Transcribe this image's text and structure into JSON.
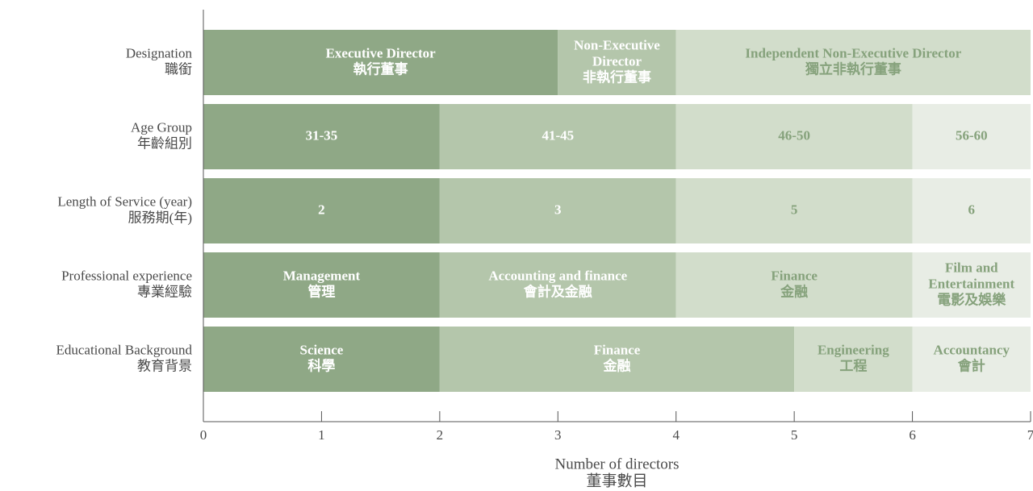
{
  "chart_data": {
    "type": "stacked_barh",
    "categories": [
      [
        "Designation",
        "職銜"
      ],
      [
        "Age Group",
        "年齡組別"
      ],
      [
        "Length of Service (year)",
        "服務期(年)"
      ],
      [
        "Professional experience",
        "專業經驗"
      ],
      [
        "Educational Background",
        "教育背景"
      ]
    ],
    "rows": [
      {
        "segments": [
          {
            "label": [
              "Executive Director",
              "執行董事"
            ],
            "value": 3,
            "color": "#8fa886"
          },
          {
            "label": [
              "Non-Executive",
              "Director",
              "非執行董事"
            ],
            "value": 1,
            "color": "#b4c6ab"
          },
          {
            "label": [
              "Independent Non-Executive Director",
              "獨立非執行董事"
            ],
            "value": 3,
            "color": "#d2ddcb"
          }
        ]
      },
      {
        "segments": [
          {
            "label": [
              "31-35"
            ],
            "value": 2,
            "color": "#8fa886"
          },
          {
            "label": [
              "41-45"
            ],
            "value": 2,
            "color": "#b4c6ab"
          },
          {
            "label": [
              "46-50"
            ],
            "value": 2,
            "color": "#d2ddcb"
          },
          {
            "label": [
              "56-60"
            ],
            "value": 1,
            "color": "#e8ede5"
          }
        ]
      },
      {
        "segments": [
          {
            "label": [
              "2"
            ],
            "value": 2,
            "color": "#8fa886"
          },
          {
            "label": [
              "3"
            ],
            "value": 2,
            "color": "#b4c6ab"
          },
          {
            "label": [
              "5"
            ],
            "value": 2,
            "color": "#d2ddcb"
          },
          {
            "label": [
              "6"
            ],
            "value": 1,
            "color": "#e8ede5"
          }
        ]
      },
      {
        "segments": [
          {
            "label": [
              "Management",
              "管理"
            ],
            "value": 2,
            "color": "#8fa886"
          },
          {
            "label": [
              "Accounting and finance",
              "會計及金融"
            ],
            "value": 2,
            "color": "#b4c6ab"
          },
          {
            "label": [
              "Finance",
              "金融"
            ],
            "value": 2,
            "color": "#d2ddcb"
          },
          {
            "label": [
              "Film and",
              "Entertainment",
              "電影及娛樂"
            ],
            "value": 1,
            "color": "#e8ede5"
          }
        ]
      },
      {
        "segments": [
          {
            "label": [
              "Science",
              "科學"
            ],
            "value": 2,
            "color": "#8fa886"
          },
          {
            "label": [
              "Finance",
              "金融"
            ],
            "value": 3,
            "color": "#b4c6ab"
          },
          {
            "label": [
              "Engineering",
              "工程"
            ],
            "value": 1,
            "color": "#d2ddcb"
          },
          {
            "label": [
              "Accountancy",
              "會計"
            ],
            "value": 1,
            "color": "#e8ede5"
          }
        ]
      }
    ],
    "xlim": [
      0,
      7
    ],
    "xticks": [
      0,
      1,
      2,
      3,
      4,
      5,
      6,
      7
    ],
    "xlabel": [
      "Number of directors",
      "董事數目"
    ]
  }
}
